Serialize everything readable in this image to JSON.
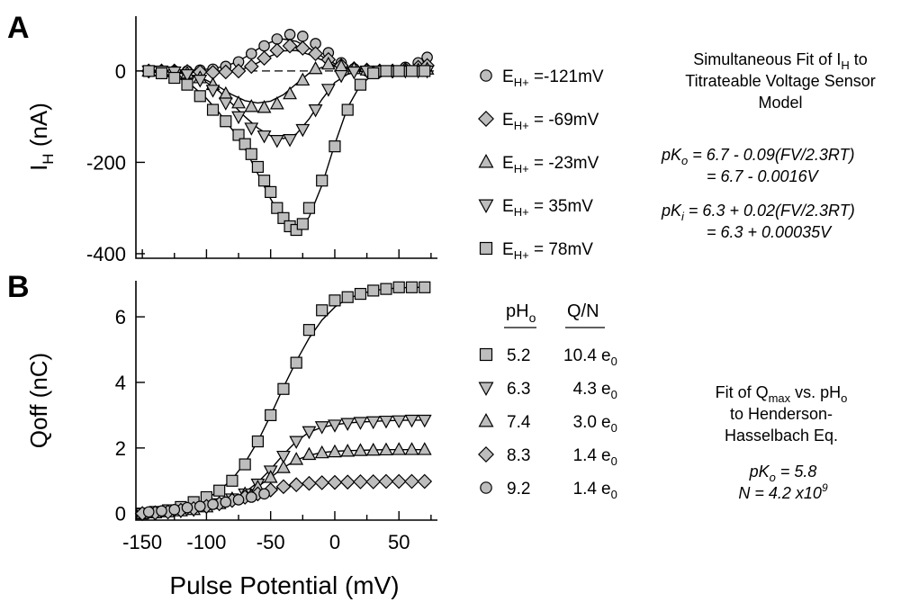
{
  "chart_data": [
    {
      "type": "scatter",
      "panel_label": "A",
      "ylabel_main": "I",
      "ylabel_sub": "H",
      "ylabel_unit": " (nA)",
      "xlim": [
        -155,
        80
      ],
      "ylim": [
        -410,
        120
      ],
      "yticks": [
        0,
        -200,
        -400
      ],
      "ytick_labels": [
        "0",
        "-200",
        "-400"
      ],
      "xticks": [
        -150,
        -100,
        -50,
        0,
        50
      ],
      "series": [
        {
          "name": "-121mV",
          "marker": "circle",
          "x": [
            -145,
            -135,
            -125,
            -115,
            -105,
            -95,
            -85,
            -75,
            -65,
            -55,
            -45,
            -35,
            -25,
            -15,
            -5,
            5,
            15,
            25,
            35,
            45,
            55,
            65,
            72
          ],
          "y": [
            0,
            0,
            0,
            0,
            2,
            4,
            10,
            20,
            38,
            55,
            70,
            80,
            76,
            60,
            40,
            18,
            5,
            0,
            -2,
            0,
            8,
            18,
            30
          ]
        },
        {
          "name": "-69mV",
          "marker": "diamond",
          "x": [
            -145,
            -135,
            -125,
            -115,
            -105,
            -95,
            -85,
            -75,
            -65,
            -55,
            -45,
            -35,
            -25,
            -15,
            -5,
            5,
            15,
            25,
            35,
            45,
            55,
            65,
            72
          ],
          "y": [
            0,
            0,
            0,
            -1,
            -2,
            -3,
            -2,
            0,
            10,
            28,
            45,
            55,
            50,
            38,
            25,
            12,
            5,
            2,
            0,
            0,
            3,
            8,
            12
          ]
        },
        {
          "name": "-23mV",
          "marker": "triangle-up",
          "x": [
            -145,
            -135,
            -125,
            -115,
            -105,
            -95,
            -85,
            -75,
            -65,
            -55,
            -45,
            -35,
            -25,
            -15,
            -5,
            5,
            15,
            25,
            35,
            45,
            55,
            65,
            72
          ],
          "y": [
            0,
            0,
            -2,
            -5,
            -15,
            -30,
            -50,
            -70,
            -78,
            -80,
            -72,
            -50,
            -20,
            5,
            15,
            10,
            5,
            2,
            0,
            0,
            0,
            2,
            4
          ]
        },
        {
          "name": "35mV",
          "marker": "triangle-down",
          "x": [
            -145,
            -135,
            -125,
            -115,
            -105,
            -95,
            -85,
            -75,
            -65,
            -55,
            -45,
            -35,
            -25,
            -15,
            -5,
            5,
            15,
            25,
            35,
            45,
            55,
            65,
            72
          ],
          "y": [
            0,
            0,
            -2,
            -8,
            -20,
            -42,
            -70,
            -100,
            -125,
            -142,
            -152,
            -150,
            -128,
            -85,
            -40,
            -10,
            -2,
            0,
            0,
            0,
            0,
            0,
            0
          ]
        },
        {
          "name": "78mV",
          "marker": "square",
          "x": [
            -145,
            -135,
            -125,
            -115,
            -105,
            -95,
            -85,
            -75,
            -70,
            -65,
            -60,
            -55,
            -50,
            -45,
            -40,
            -35,
            -30,
            -25,
            -20,
            -10,
            0,
            10,
            20,
            30,
            40,
            50,
            60,
            70
          ],
          "y": [
            0,
            -5,
            -15,
            -30,
            -55,
            -85,
            -110,
            -140,
            -160,
            -182,
            -210,
            -240,
            -265,
            -300,
            -322,
            -340,
            -348,
            -335,
            -300,
            -240,
            -165,
            -85,
            -30,
            -5,
            0,
            0,
            0,
            0
          ]
        }
      ],
      "fits": [
        {
          "x": [
            -150,
            -140,
            -130,
            -120,
            -110,
            -100,
            -90,
            -80,
            -70,
            -60,
            -50,
            -40,
            -30,
            -20,
            -10,
            0,
            10,
            20,
            30,
            40,
            50,
            60,
            70,
            75
          ],
          "y": [
            0,
            0,
            0,
            1,
            2,
            4,
            8,
            16,
            30,
            48,
            63,
            70,
            65,
            50,
            32,
            16,
            6,
            1,
            -1,
            0,
            2,
            6,
            12,
            16
          ]
        },
        {
          "x": [
            -150,
            -140,
            -130,
            -120,
            -110,
            -100,
            -90,
            -80,
            -70,
            -60,
            -50,
            -40,
            -30,
            -20,
            -10,
            0,
            10,
            20,
            30,
            40,
            50,
            60,
            70,
            75
          ],
          "y": [
            0,
            0,
            0,
            0,
            -1,
            -2,
            -3,
            -1,
            6,
            18,
            33,
            44,
            45,
            36,
            24,
            12,
            5,
            1,
            0,
            0,
            1,
            3,
            6,
            8
          ]
        },
        {
          "x": [
            -150,
            -140,
            -130,
            -120,
            -110,
            -100,
            -90,
            -80,
            -70,
            -60,
            -50,
            -40,
            -30,
            -20,
            -10,
            0,
            10,
            20,
            30,
            40,
            50,
            60,
            70,
            75
          ],
          "y": [
            0,
            -1,
            -2,
            -4,
            -10,
            -20,
            -35,
            -52,
            -65,
            -70,
            -66,
            -52,
            -28,
            -5,
            8,
            10,
            5,
            2,
            0,
            0,
            0,
            1,
            2,
            3
          ]
        },
        {
          "x": [
            -150,
            -140,
            -130,
            -120,
            -110,
            -100,
            -90,
            -80,
            -70,
            -60,
            -50,
            -40,
            -30,
            -20,
            -10,
            0,
            10,
            20,
            30,
            40,
            50,
            60,
            70,
            75
          ],
          "y": [
            0,
            -1,
            -2,
            -5,
            -12,
            -25,
            -45,
            -72,
            -100,
            -125,
            -142,
            -148,
            -138,
            -105,
            -62,
            -25,
            -7,
            -1,
            0,
            0,
            0,
            0,
            0,
            0
          ]
        },
        {
          "x": [
            -150,
            -140,
            -130,
            -120,
            -110,
            -100,
            -90,
            -80,
            -70,
            -60,
            -50,
            -40,
            -30,
            -20,
            -10,
            0,
            10,
            20,
            30,
            40,
            50,
            60,
            70,
            75
          ],
          "y": [
            0,
            -3,
            -8,
            -18,
            -35,
            -60,
            -92,
            -128,
            -170,
            -225,
            -280,
            -328,
            -350,
            -320,
            -250,
            -160,
            -80,
            -30,
            -8,
            -2,
            0,
            0,
            0,
            0
          ]
        }
      ]
    },
    {
      "type": "line",
      "panel_label": "B",
      "ylabel": "Qoff (nC)",
      "xlabel": "Pulse Potential (mV)",
      "xlim": [
        -155,
        80
      ],
      "ylim": [
        -0.2,
        7.1
      ],
      "yticks": [
        0,
        2,
        4,
        6
      ],
      "ytick_labels": [
        "0",
        "2",
        "4",
        "6"
      ],
      "xticks": [
        -150,
        -100,
        -50,
        0,
        50
      ],
      "xtick_labels": [
        "-150",
        "-100",
        "-50",
        "0",
        "50"
      ],
      "series": [
        {
          "name": "5.2",
          "marker": "square",
          "x": [
            -150,
            -140,
            -130,
            -120,
            -110,
            -100,
            -90,
            -80,
            -70,
            -60,
            -50,
            -40,
            -30,
            -20,
            -10,
            0,
            10,
            20,
            30,
            40,
            50,
            60,
            70
          ],
          "y": [
            0,
            0.05,
            0.1,
            0.2,
            0.35,
            0.5,
            0.7,
            1.0,
            1.5,
            2.2,
            3.0,
            3.8,
            4.6,
            5.6,
            6.2,
            6.5,
            6.6,
            6.7,
            6.8,
            6.85,
            6.9,
            6.9,
            6.9
          ]
        },
        {
          "name": "6.3",
          "marker": "triangle-down",
          "x": [
            -150,
            -140,
            -130,
            -120,
            -110,
            -100,
            -90,
            -80,
            -70,
            -60,
            -50,
            -40,
            -30,
            -20,
            -10,
            0,
            10,
            20,
            30,
            40,
            50,
            60,
            70
          ],
          "y": [
            0,
            0.02,
            0.05,
            0.08,
            0.12,
            0.2,
            0.3,
            0.45,
            0.6,
            0.9,
            1.3,
            1.75,
            2.2,
            2.5,
            2.65,
            2.7,
            2.75,
            2.78,
            2.8,
            2.82,
            2.83,
            2.85,
            2.85
          ]
        },
        {
          "name": "7.4",
          "marker": "triangle-up",
          "x": [
            -150,
            -140,
            -130,
            -120,
            -110,
            -100,
            -90,
            -80,
            -70,
            -60,
            -50,
            -40,
            -30,
            -20,
            -10,
            0,
            10,
            20,
            30,
            40,
            50,
            60,
            70
          ],
          "y": [
            0,
            0.02,
            0.05,
            0.08,
            0.12,
            0.2,
            0.3,
            0.45,
            0.6,
            0.8,
            1.1,
            1.4,
            1.65,
            1.8,
            1.85,
            1.88,
            1.9,
            1.92,
            1.93,
            1.94,
            1.95,
            1.95,
            1.95
          ]
        },
        {
          "name": "8.3",
          "marker": "diamond",
          "x": [
            -150,
            -140,
            -130,
            -120,
            -110,
            -100,
            -90,
            -80,
            -70,
            -60,
            -50,
            -40,
            -30,
            -20,
            -10,
            0,
            10,
            20,
            30,
            40,
            50,
            60,
            70
          ],
          "y": [
            0,
            0.02,
            0.05,
            0.1,
            0.15,
            0.22,
            0.3,
            0.4,
            0.5,
            0.6,
            0.72,
            0.82,
            0.88,
            0.92,
            0.94,
            0.95,
            0.96,
            0.97,
            0.97,
            0.98,
            0.98,
            0.98,
            0.98
          ]
        },
        {
          "name": "9.2",
          "marker": "circle",
          "x": [
            -145,
            -135,
            -125,
            -115,
            -105,
            -95,
            -85,
            -75,
            -65,
            -55
          ],
          "y": [
            0.05,
            0.08,
            0.12,
            0.18,
            0.22,
            0.28,
            0.35,
            0.42,
            0.5,
            0.6
          ]
        }
      ],
      "fits": [
        {
          "x": [
            -150,
            -140,
            -130,
            -120,
            -110,
            -100,
            -90,
            -80,
            -70,
            -60,
            -50,
            -40,
            -30,
            -20,
            -10,
            0,
            10,
            20,
            30,
            40,
            50,
            60,
            70
          ],
          "y": [
            0.02,
            0.05,
            0.09,
            0.16,
            0.28,
            0.45,
            0.7,
            1.05,
            1.55,
            2.2,
            3.0,
            3.85,
            4.65,
            5.35,
            5.9,
            6.3,
            6.55,
            6.7,
            6.8,
            6.85,
            6.88,
            6.9,
            6.9
          ]
        },
        {
          "x": [
            -150,
            -140,
            -130,
            -120,
            -110,
            -100,
            -90,
            -80,
            -70,
            -60,
            -50,
            -40,
            -30,
            -20,
            -10,
            0,
            10,
            20,
            30,
            40,
            50,
            60,
            70
          ],
          "y": [
            0.01,
            0.02,
            0.04,
            0.07,
            0.12,
            0.19,
            0.3,
            0.45,
            0.65,
            0.95,
            1.35,
            1.8,
            2.2,
            2.48,
            2.63,
            2.71,
            2.76,
            2.79,
            2.81,
            2.83,
            2.84,
            2.85,
            2.85
          ]
        },
        {
          "x": [
            -150,
            -140,
            -130,
            -120,
            -110,
            -100,
            -90,
            -80,
            -70,
            -60,
            -50,
            -40,
            -30,
            -20,
            -10,
            0,
            10,
            20,
            30,
            40,
            50,
            60,
            70
          ],
          "y": [
            0.01,
            0.02,
            0.04,
            0.07,
            0.11,
            0.18,
            0.28,
            0.42,
            0.6,
            0.82,
            1.1,
            1.4,
            1.63,
            1.78,
            1.86,
            1.9,
            1.92,
            1.93,
            1.94,
            1.95,
            1.95,
            1.95,
            1.95
          ]
        },
        {
          "x": [
            -150,
            -140,
            -130,
            -120,
            -110,
            -100,
            -90,
            -80,
            -70,
            -60,
            -50,
            -40,
            -30,
            -20,
            -10,
            0,
            10,
            20,
            30,
            40,
            50,
            60,
            70
          ],
          "y": [
            0.01,
            0.03,
            0.06,
            0.1,
            0.15,
            0.22,
            0.3,
            0.4,
            0.5,
            0.61,
            0.72,
            0.81,
            0.87,
            0.91,
            0.94,
            0.95,
            0.96,
            0.97,
            0.97,
            0.98,
            0.98,
            0.98,
            0.98
          ]
        }
      ]
    }
  ],
  "legend_a": {
    "label_prefix": "E",
    "label_sub": "H+",
    "entries": [
      {
        "value": " =-121mV",
        "marker": "circle"
      },
      {
        "value": " =  -69mV",
        "marker": "diamond"
      },
      {
        "value": " =  -23mV",
        "marker": "triangle-up"
      },
      {
        "value": " =    35mV",
        "marker": "triangle-down"
      },
      {
        "value": " =    78mV",
        "marker": "square"
      }
    ]
  },
  "legend_b": {
    "header_ph_main": "pH",
    "header_ph_sub": "o",
    "header_qn": "Q/N",
    "unit_main": "e",
    "unit_sub": "0",
    "entries": [
      {
        "ph": "5.2",
        "qn": "10.4",
        "marker": "square"
      },
      {
        "ph": "6.3",
        "qn": "4.3",
        "marker": "triangle-down"
      },
      {
        "ph": "7.4",
        "qn": "3.0",
        "marker": "triangle-up"
      },
      {
        "ph": "8.3",
        "qn": "1.4",
        "marker": "diamond"
      },
      {
        "ph": "9.2",
        "qn": "1.4",
        "marker": "circle"
      }
    ]
  },
  "annotation_a": {
    "line1_pre": "Simultaneous Fit of I",
    "line1_sub": "H",
    "line1_post": " to",
    "line2": "Titrateable Voltage Sensor",
    "line3": "Model",
    "eq1_pre": "pK",
    "eq1_sub": "o",
    "eq1_post": " = 6.7 - 0.09(FV/2.3RT)",
    "eq1_line2": "= 6.7 - 0.0016V",
    "eq2_pre": "pK",
    "eq2_sub": "i",
    "eq2_post": " = 6.3 + 0.02(FV/2.3RT)",
    "eq2_line2": "= 6.3 + 0.00035V"
  },
  "annotation_b": {
    "line1_pre": "Fit of Q",
    "line1_sub": "max",
    "line1_mid": " vs. pH",
    "line1_sub2": "o",
    "line2": "to Henderson-",
    "line3": "Hasselbach Eq.",
    "eq1_pre": "pK",
    "eq1_sub": "o",
    "eq1_post": " = 5.8",
    "eq2_pre": "N = 4.2 x10",
    "eq2_sup": "9"
  }
}
